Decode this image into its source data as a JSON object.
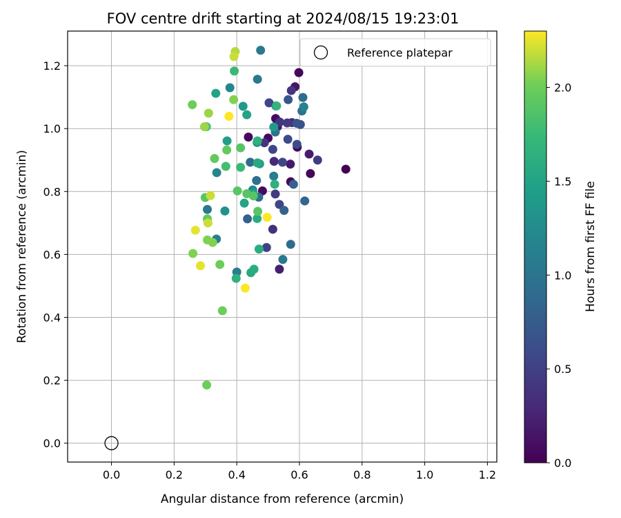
{
  "chart_data": {
    "type": "scatter",
    "title": "FOV centre drift starting at 2024/08/15 19:23:01",
    "xlabel": "Angular distance from reference (arcmin)",
    "ylabel": "Rotation from reference (arcmin)",
    "xlim": [
      -0.14,
      1.23
    ],
    "ylim": [
      -0.06,
      1.31
    ],
    "xticks": [
      "0.0",
      "0.2",
      "0.4",
      "0.6",
      "0.8",
      "1.0",
      "1.2"
    ],
    "yticks": [
      "0.0",
      "0.2",
      "0.4",
      "0.6",
      "0.8",
      "1.0",
      "1.2"
    ],
    "grid": true,
    "legend": {
      "placement": "top-right",
      "entries": [
        "Reference platepar"
      ]
    },
    "reference_point": {
      "x": 0.0,
      "y": 0.0,
      "name": "Reference platepar",
      "marker": "open-circle"
    },
    "colorbar": {
      "label": "Hours from first FF file",
      "range": [
        0.0,
        2.3
      ],
      "ticks": [
        "0.0",
        "0.5",
        "1.0",
        "1.5",
        "2.0"
      ],
      "colormap": "viridis"
    },
    "points": [
      {
        "x": 0.748,
        "y": 0.871,
        "c": 0.0
      },
      {
        "x": 0.635,
        "y": 0.857,
        "c": 0.05
      },
      {
        "x": 0.598,
        "y": 1.178,
        "c": 0.05
      },
      {
        "x": 0.437,
        "y": 0.973,
        "c": 0.07
      },
      {
        "x": 0.524,
        "y": 1.032,
        "c": 0.08
      },
      {
        "x": 0.5,
        "y": 0.97,
        "c": 0.07
      },
      {
        "x": 0.482,
        "y": 0.802,
        "c": 0.08
      },
      {
        "x": 0.572,
        "y": 0.831,
        "c": 0.05
      },
      {
        "x": 0.593,
        "y": 0.941,
        "c": 0.03
      },
      {
        "x": 0.571,
        "y": 0.887,
        "c": 0.18
      },
      {
        "x": 0.53,
        "y": 1.006,
        "c": 0.2
      },
      {
        "x": 0.586,
        "y": 1.133,
        "c": 0.15
      },
      {
        "x": 0.631,
        "y": 0.919,
        "c": 0.2
      },
      {
        "x": 0.536,
        "y": 0.553,
        "c": 0.22
      },
      {
        "x": 0.519,
        "y": 0.896,
        "c": 0.3
      },
      {
        "x": 0.576,
        "y": 1.019,
        "c": 0.3
      },
      {
        "x": 0.515,
        "y": 0.68,
        "c": 0.35
      },
      {
        "x": 0.574,
        "y": 1.121,
        "c": 0.4
      },
      {
        "x": 0.488,
        "y": 0.955,
        "c": 0.4
      },
      {
        "x": 0.537,
        "y": 1.021,
        "c": 0.4
      },
      {
        "x": 0.658,
        "y": 0.9,
        "c": 0.45
      },
      {
        "x": 0.561,
        "y": 1.018,
        "c": 0.45
      },
      {
        "x": 0.523,
        "y": 0.792,
        "c": 0.45
      },
      {
        "x": 0.495,
        "y": 0.622,
        "c": 0.5
      },
      {
        "x": 0.503,
        "y": 1.082,
        "c": 0.55
      },
      {
        "x": 0.536,
        "y": 0.759,
        "c": 0.55
      },
      {
        "x": 0.515,
        "y": 0.934,
        "c": 0.55
      },
      {
        "x": 0.546,
        "y": 0.893,
        "c": 0.55
      },
      {
        "x": 0.563,
        "y": 0.966,
        "c": 0.6
      },
      {
        "x": 0.592,
        "y": 0.95,
        "c": 0.6
      },
      {
        "x": 0.603,
        "y": 1.013,
        "c": 0.65
      },
      {
        "x": 0.591,
        "y": 1.017,
        "c": 0.68
      },
      {
        "x": 0.564,
        "y": 1.092,
        "c": 0.7
      },
      {
        "x": 0.525,
        "y": 1.072,
        "c": 0.75
      },
      {
        "x": 0.551,
        "y": 0.74,
        "c": 0.8
      },
      {
        "x": 0.434,
        "y": 0.713,
        "c": 0.8
      },
      {
        "x": 0.581,
        "y": 0.823,
        "c": 0.8
      },
      {
        "x": 0.617,
        "y": 0.77,
        "c": 0.85
      },
      {
        "x": 0.572,
        "y": 0.632,
        "c": 0.9
      },
      {
        "x": 0.611,
        "y": 1.099,
        "c": 0.9
      },
      {
        "x": 0.443,
        "y": 0.893,
        "c": 0.9
      },
      {
        "x": 0.463,
        "y": 0.835,
        "c": 0.95
      },
      {
        "x": 0.608,
        "y": 1.056,
        "c": 0.95
      },
      {
        "x": 0.47,
        "y": 0.782,
        "c": 0.95
      },
      {
        "x": 0.523,
        "y": 0.989,
        "c": 1.0
      },
      {
        "x": 0.466,
        "y": 1.157,
        "c": 1.05
      },
      {
        "x": 0.476,
        "y": 1.249,
        "c": 1.05
      },
      {
        "x": 0.547,
        "y": 0.584,
        "c": 1.05
      },
      {
        "x": 0.306,
        "y": 0.743,
        "c": 1.05
      },
      {
        "x": 0.335,
        "y": 0.649,
        "c": 1.1
      },
      {
        "x": 0.4,
        "y": 0.544,
        "c": 1.1
      },
      {
        "x": 0.518,
        "y": 0.849,
        "c": 1.1
      },
      {
        "x": 0.614,
        "y": 1.069,
        "c": 1.15
      },
      {
        "x": 0.451,
        "y": 0.805,
        "c": 1.2
      },
      {
        "x": 0.378,
        "y": 1.13,
        "c": 1.2
      },
      {
        "x": 0.336,
        "y": 0.86,
        "c": 1.2
      },
      {
        "x": 0.465,
        "y": 0.956,
        "c": 1.25
      },
      {
        "x": 0.362,
        "y": 0.738,
        "c": 1.3
      },
      {
        "x": 0.518,
        "y": 1.005,
        "c": 1.4
      },
      {
        "x": 0.42,
        "y": 1.071,
        "c": 1.4
      },
      {
        "x": 0.473,
        "y": 0.888,
        "c": 1.45
      },
      {
        "x": 0.452,
        "y": 0.795,
        "c": 1.45
      },
      {
        "x": 0.369,
        "y": 0.961,
        "c": 1.45
      },
      {
        "x": 0.333,
        "y": 1.112,
        "c": 1.5
      },
      {
        "x": 0.432,
        "y": 1.044,
        "c": 1.5
      },
      {
        "x": 0.424,
        "y": 0.763,
        "c": 1.5
      },
      {
        "x": 0.466,
        "y": 0.891,
        "c": 1.55
      },
      {
        "x": 0.445,
        "y": 0.542,
        "c": 1.55
      },
      {
        "x": 0.455,
        "y": 0.553,
        "c": 1.6
      },
      {
        "x": 0.471,
        "y": 0.617,
        "c": 1.6
      },
      {
        "x": 0.465,
        "y": 0.714,
        "c": 1.6
      },
      {
        "x": 0.398,
        "y": 0.524,
        "c": 1.65
      },
      {
        "x": 0.521,
        "y": 0.823,
        "c": 1.65
      },
      {
        "x": 0.466,
        "y": 0.961,
        "c": 1.65
      },
      {
        "x": 0.527,
        "y": 1.072,
        "c": 1.7
      },
      {
        "x": 0.392,
        "y": 1.183,
        "c": 1.75
      },
      {
        "x": 0.412,
        "y": 0.877,
        "c": 1.75
      },
      {
        "x": 0.303,
        "y": 1.006,
        "c": 1.8
      },
      {
        "x": 0.365,
        "y": 0.88,
        "c": 1.8
      },
      {
        "x": 0.299,
        "y": 0.781,
        "c": 1.9
      },
      {
        "x": 0.402,
        "y": 0.802,
        "c": 1.9
      },
      {
        "x": 0.412,
        "y": 0.939,
        "c": 1.9
      },
      {
        "x": 0.432,
        "y": 0.793,
        "c": 1.9
      },
      {
        "x": 0.453,
        "y": 0.786,
        "c": 1.9
      },
      {
        "x": 0.467,
        "y": 0.737,
        "c": 1.9
      },
      {
        "x": 0.306,
        "y": 0.713,
        "c": 1.95
      },
      {
        "x": 0.368,
        "y": 0.932,
        "c": 1.95
      },
      {
        "x": 0.329,
        "y": 0.905,
        "c": 1.95
      },
      {
        "x": 0.346,
        "y": 0.568,
        "c": 2.0
      },
      {
        "x": 0.354,
        "y": 0.421,
        "c": 2.0
      },
      {
        "x": 0.304,
        "y": 0.185,
        "c": 2.0
      },
      {
        "x": 0.258,
        "y": 1.076,
        "c": 2.0
      },
      {
        "x": 0.26,
        "y": 0.603,
        "c": 2.05
      },
      {
        "x": 0.306,
        "y": 0.646,
        "c": 2.05
      },
      {
        "x": 0.323,
        "y": 0.638,
        "c": 2.05
      },
      {
        "x": 0.39,
        "y": 1.092,
        "c": 2.05
      },
      {
        "x": 0.297,
        "y": 1.006,
        "c": 2.1
      },
      {
        "x": 0.31,
        "y": 1.049,
        "c": 2.1
      },
      {
        "x": 0.395,
        "y": 1.245,
        "c": 2.15
      },
      {
        "x": 0.391,
        "y": 1.229,
        "c": 2.2
      },
      {
        "x": 0.316,
        "y": 0.787,
        "c": 2.2
      },
      {
        "x": 0.308,
        "y": 0.7,
        "c": 2.2
      },
      {
        "x": 0.284,
        "y": 0.564,
        "c": 2.25
      },
      {
        "x": 0.268,
        "y": 0.677,
        "c": 2.25
      },
      {
        "x": 0.375,
        "y": 1.039,
        "c": 2.3
      },
      {
        "x": 0.427,
        "y": 0.493,
        "c": 2.3
      },
      {
        "x": 0.497,
        "y": 0.718,
        "c": 2.3
      }
    ]
  }
}
